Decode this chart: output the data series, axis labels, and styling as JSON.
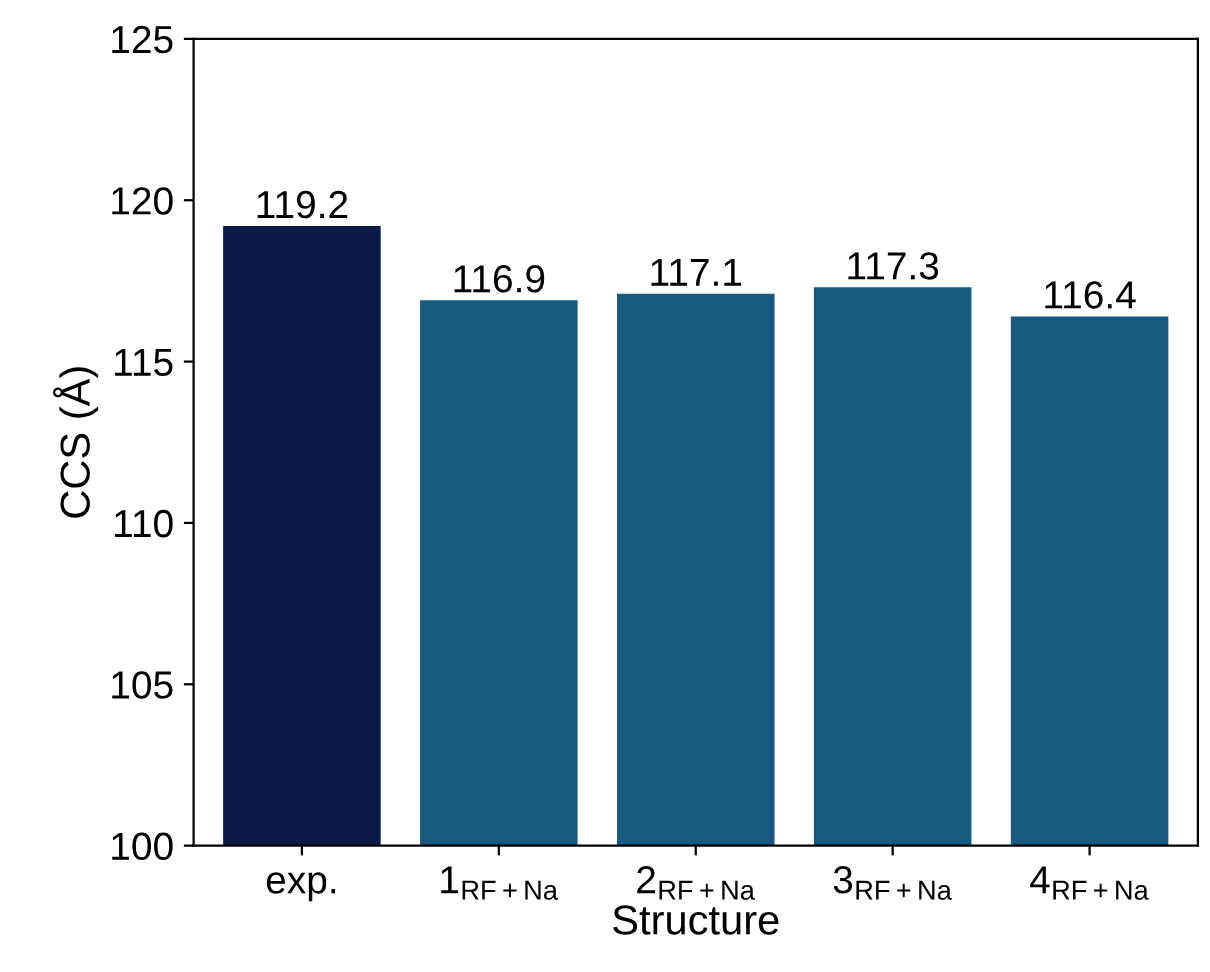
{
  "chart_data": {
    "type": "bar",
    "xlabel": "Structure",
    "ylabel": "CCS (Å)",
    "categories": [
      "exp.",
      "1$_{RF+Na}$",
      "2$_{RF+Na}$",
      "3$_{RF+Na}$",
      "4$_{RF+Na}$"
    ],
    "values": [
      119.2,
      116.9,
      117.1,
      117.3,
      116.4
    ],
    "colors": [
      "#0b1a45",
      "#17597f",
      "#17597f",
      "#17597f",
      "#17597f"
    ],
    "ylim": [
      100,
      125
    ],
    "yticks": [
      100,
      105,
      110,
      115,
      120,
      125
    ],
    "data_labels": true,
    "grid": false,
    "legend": false
  }
}
